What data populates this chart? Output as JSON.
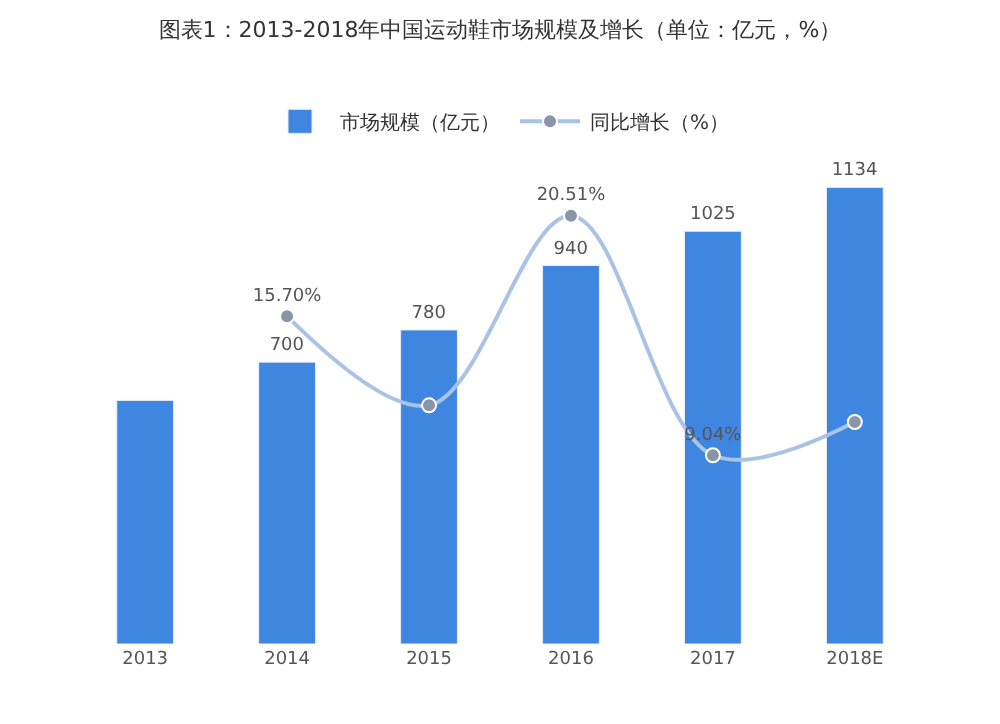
{
  "chart_data": {
    "type": "bar",
    "title": "图表1：2013-2018年中国运动鞋市场规模及增长（单位：亿元，%）",
    "categories": [
      "2013",
      "2014",
      "2015",
      "2016",
      "2017",
      "2018E"
    ],
    "legend": "top",
    "tick_labels": "x",
    "series": [
      {
        "name": "市场规模（亿元）",
        "color": "#3f86e0",
        "values": [
          605,
          700,
          780,
          940,
          1025,
          1134
        ],
        "value_labels": [
          null,
          "700",
          "780",
          "940",
          "1025",
          "1134"
        ]
      },
      {
        "name": "同比增长（%）",
        "type": "line",
        "axis": "y2",
        "color": "#a9c3e6",
        "marker": "circle",
        "values": [
          null,
          15.7,
          11.43,
          20.51,
          9.04,
          10.63
        ],
        "value_labels": [
          null,
          "15.70%",
          null,
          "20.51%",
          "9.04%",
          null
        ]
      }
    ]
  }
}
